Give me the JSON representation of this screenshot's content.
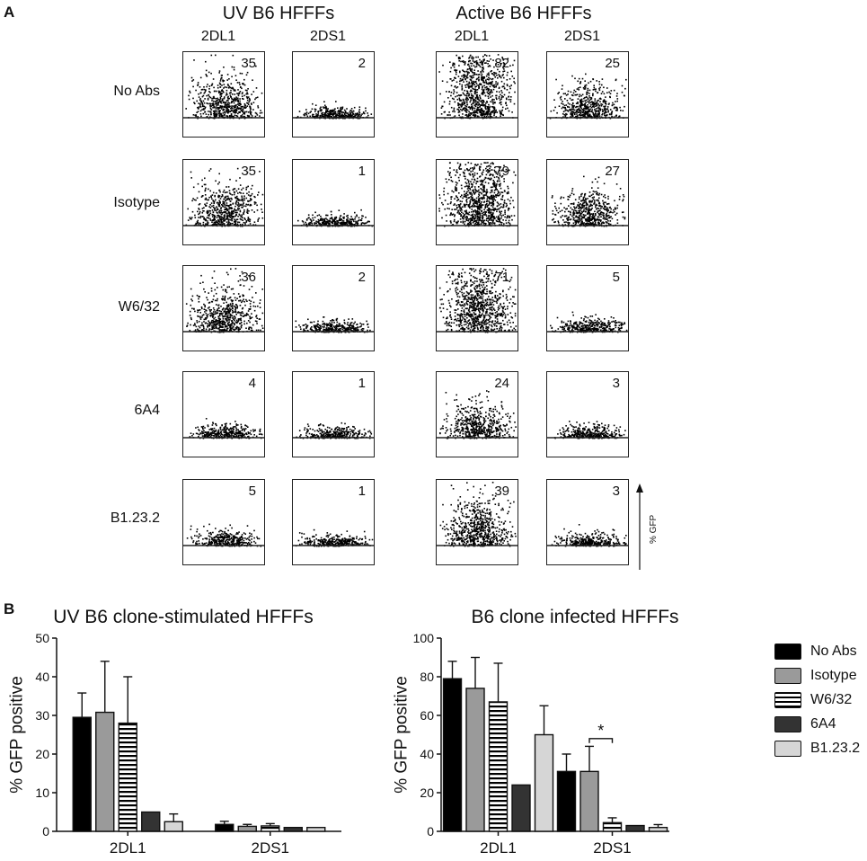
{
  "panel_a": {
    "letter": "A",
    "groups": [
      {
        "title": "UV B6 HFFFs",
        "columns": [
          "2DL1",
          "2DS1"
        ]
      },
      {
        "title": "Active B6 HFFFs",
        "columns": [
          "2DL1",
          "2DS1"
        ]
      }
    ],
    "row_labels": [
      "No Abs",
      "Isotype",
      "W6/32",
      "6A4",
      "B1.23.2"
    ],
    "values": [
      [
        "35",
        "2",
        "82",
        "25"
      ],
      [
        "35",
        "1",
        "79",
        "27"
      ],
      [
        "36",
        "2",
        "71",
        "5"
      ],
      [
        "4",
        "1",
        "24",
        "3"
      ],
      [
        "5",
        "1",
        "39",
        "3"
      ]
    ],
    "axis_label": "% GFP"
  },
  "panel_b": {
    "letter": "B",
    "legend": [
      {
        "label": "No Abs",
        "color": "#000000",
        "pattern": "solid"
      },
      {
        "label": "Isotype",
        "color": "#9a9a9a",
        "pattern": "solid"
      },
      {
        "label": "W6/32",
        "color": "#000000",
        "pattern": "stripes"
      },
      {
        "label": "6A4",
        "color": "#333333",
        "pattern": "solid"
      },
      {
        "label": "B1.23.2",
        "color": "#d6d6d6",
        "pattern": "solid"
      }
    ]
  },
  "chart_data": [
    {
      "type": "bar",
      "title": "UV B6 clone-stimulated HFFFs",
      "xlabel": "",
      "ylabel": "% GFP positive",
      "ylim": [
        0,
        50
      ],
      "yticks": [
        0,
        10,
        20,
        30,
        40,
        50
      ],
      "categories": [
        "2DL1",
        "2DS1"
      ],
      "series": [
        {
          "name": "No Abs",
          "values": [
            29.5,
            1.8
          ],
          "errors": [
            6.3,
            0.8
          ]
        },
        {
          "name": "Isotype",
          "values": [
            30.8,
            1.3
          ],
          "errors": [
            13.2,
            0.5
          ]
        },
        {
          "name": "W6/32",
          "values": [
            28.0,
            1.4
          ],
          "errors": [
            12.0,
            0.6
          ]
        },
        {
          "name": "6A4",
          "values": [
            5.0,
            1.0
          ],
          "errors": [
            0,
            0
          ]
        },
        {
          "name": "B1.23.2",
          "values": [
            2.5,
            1.0
          ],
          "errors": [
            2.0,
            0
          ]
        }
      ]
    },
    {
      "type": "bar",
      "title": "B6 clone infected HFFFs",
      "xlabel": "",
      "ylabel": "% GFP positive",
      "ylim": [
        0,
        100
      ],
      "yticks": [
        0,
        20,
        40,
        60,
        80,
        100
      ],
      "categories": [
        "2DL1",
        "2DS1"
      ],
      "series": [
        {
          "name": "No Abs",
          "values": [
            79,
            31
          ],
          "errors": [
            9,
            9
          ]
        },
        {
          "name": "Isotype",
          "values": [
            74,
            31
          ],
          "errors": [
            16,
            13
          ]
        },
        {
          "name": "W6/32",
          "values": [
            67,
            4.5
          ],
          "errors": [
            20,
            2.5
          ]
        },
        {
          "name": "6A4",
          "values": [
            24,
            3
          ],
          "errors": [
            0,
            0
          ]
        },
        {
          "name": "B1.23.2",
          "values": [
            50,
            2
          ],
          "errors": [
            15,
            1.5
          ]
        }
      ],
      "annotations": [
        {
          "text": "*",
          "between": [
            "Isotype",
            "W6/32"
          ],
          "category": "2DS1"
        }
      ]
    }
  ]
}
